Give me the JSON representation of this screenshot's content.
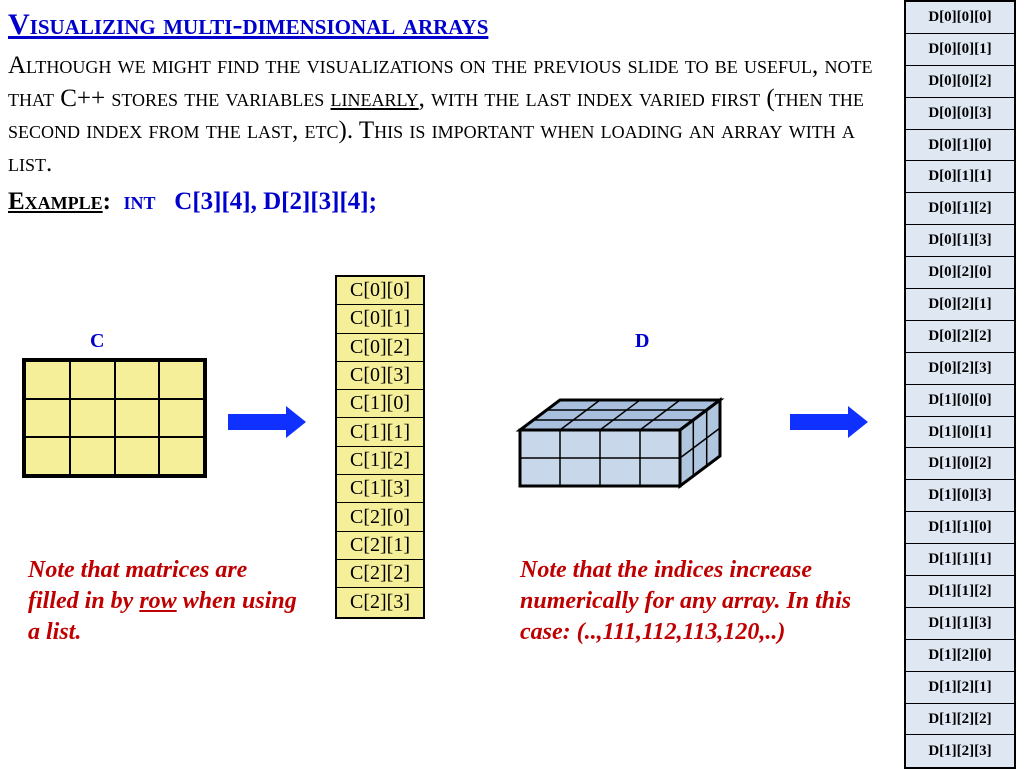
{
  "title": "Visualizing multi-dimensional arrays",
  "paragraph": {
    "pre": "Although we might find the visualizations on the previous slide to be useful, note that C++ stores the variables ",
    "linearly": "linearly",
    "post": ", with the last index varied first (then the second index from the last, etc).  This is important when loading an array with a list."
  },
  "example": {
    "label": "Example",
    "colon": ":",
    "int": "int",
    "decl": "C[3][4],   D[2][3][4];"
  },
  "labels": {
    "c": "C",
    "d": "D"
  },
  "colors": {
    "title": "#0000cc",
    "c_fill": "#f6ef99",
    "d_fill": "#dfe7f2",
    "cube_fill": "#c8d8ea",
    "arrow": "#1030ff",
    "red": "#c00000",
    "border": "#000000",
    "background": "#ffffff"
  },
  "grid_c": {
    "rows": 3,
    "cols": 4
  },
  "cube_d": {
    "dim": [
      2,
      3,
      4
    ]
  },
  "c_linear": [
    "C[0][0]",
    "C[0][1]",
    "C[0][2]",
    "C[0][3]",
    "C[1][0]",
    "C[1][1]",
    "C[1][2]",
    "C[1][3]",
    "C[2][0]",
    "C[2][1]",
    "C[2][2]",
    "C[2][3]"
  ],
  "d_linear": [
    "D[0][0][0]",
    "D[0][0][1]",
    "D[0][0][2]",
    "D[0][0][3]",
    "D[0][1][0]",
    "D[0][1][1]",
    "D[0][1][2]",
    "D[0][1][3]",
    "D[0][2][0]",
    "D[0][2][1]",
    "D[0][2][2]",
    "D[0][2][3]",
    "D[1][0][0]",
    "D[1][0][1]",
    "D[1][0][2]",
    "D[1][0][3]",
    "D[1][1][0]",
    "D[1][1][1]",
    "D[1][1][2]",
    "D[1][1][3]",
    "D[1][2][0]",
    "D[1][2][1]",
    "D[1][2][2]",
    "D[1][2][3]"
  ],
  "note_left": {
    "pre": "Note that matrices are filled in by ",
    "row": "row",
    "post": " when using a list."
  },
  "note_right": "Note that the indices increase numerically for any array.  In this case: (..,111,112,113,120,..)"
}
